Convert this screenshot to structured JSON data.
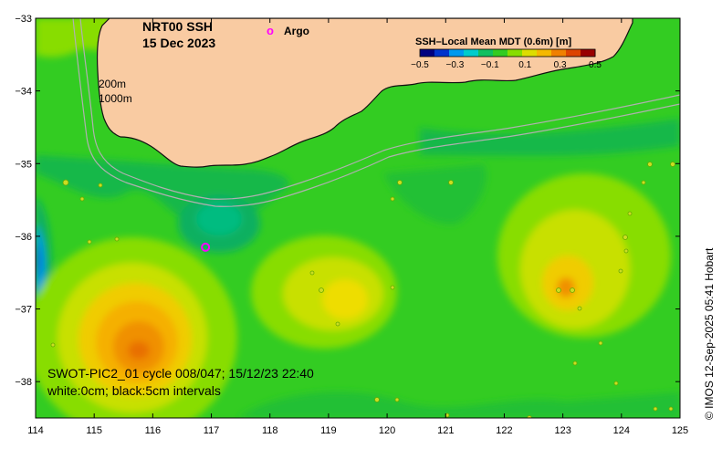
{
  "map": {
    "title_line1": "NRT00 SSH",
    "title_line2": "15 Dec 2023",
    "argo_marker": "o",
    "argo_label": "Argo",
    "contour_label_200": "200m",
    "contour_label_1000": "1000m",
    "caption_line1": "SWOT-PIC2_01 cycle 008/047; 15/12/23 22:40",
    "caption_line2": "white:0cm; black:5cm intervals",
    "credit": "© IMOS 12-Sep-2025 05:41 Hobart",
    "x_ticks": [
      "114",
      "115",
      "116",
      "117",
      "118",
      "119",
      "120",
      "121",
      "122",
      "123",
      "124",
      "125"
    ],
    "y_ticks": [
      "−33",
      "−34",
      "−35",
      "−36",
      "−37",
      "−38"
    ],
    "lon_range": [
      114,
      125
    ],
    "lat_range": [
      -38.5,
      -33
    ],
    "argo_float": {
      "lon": 116.9,
      "lat": -36.15
    },
    "colors": {
      "land": "#f9cba2",
      "field_green": "#1fbf1f",
      "argo": "#ff00ff",
      "bathy": "#b0b0b0"
    }
  },
  "colorbar": {
    "title": "SSH–Local Mean MDT (0.6m) [m]",
    "tick_labels": [
      "−0.5",
      "−0.3",
      "−0.1",
      "0.1",
      "0.3",
      "0.5"
    ],
    "colors": [
      "#000080",
      "#0033cc",
      "#0099ee",
      "#00cccc",
      "#10c060",
      "#33cc22",
      "#88dd00",
      "#dddd00",
      "#f5b800",
      "#f08000",
      "#dd4400",
      "#990000"
    ]
  }
}
